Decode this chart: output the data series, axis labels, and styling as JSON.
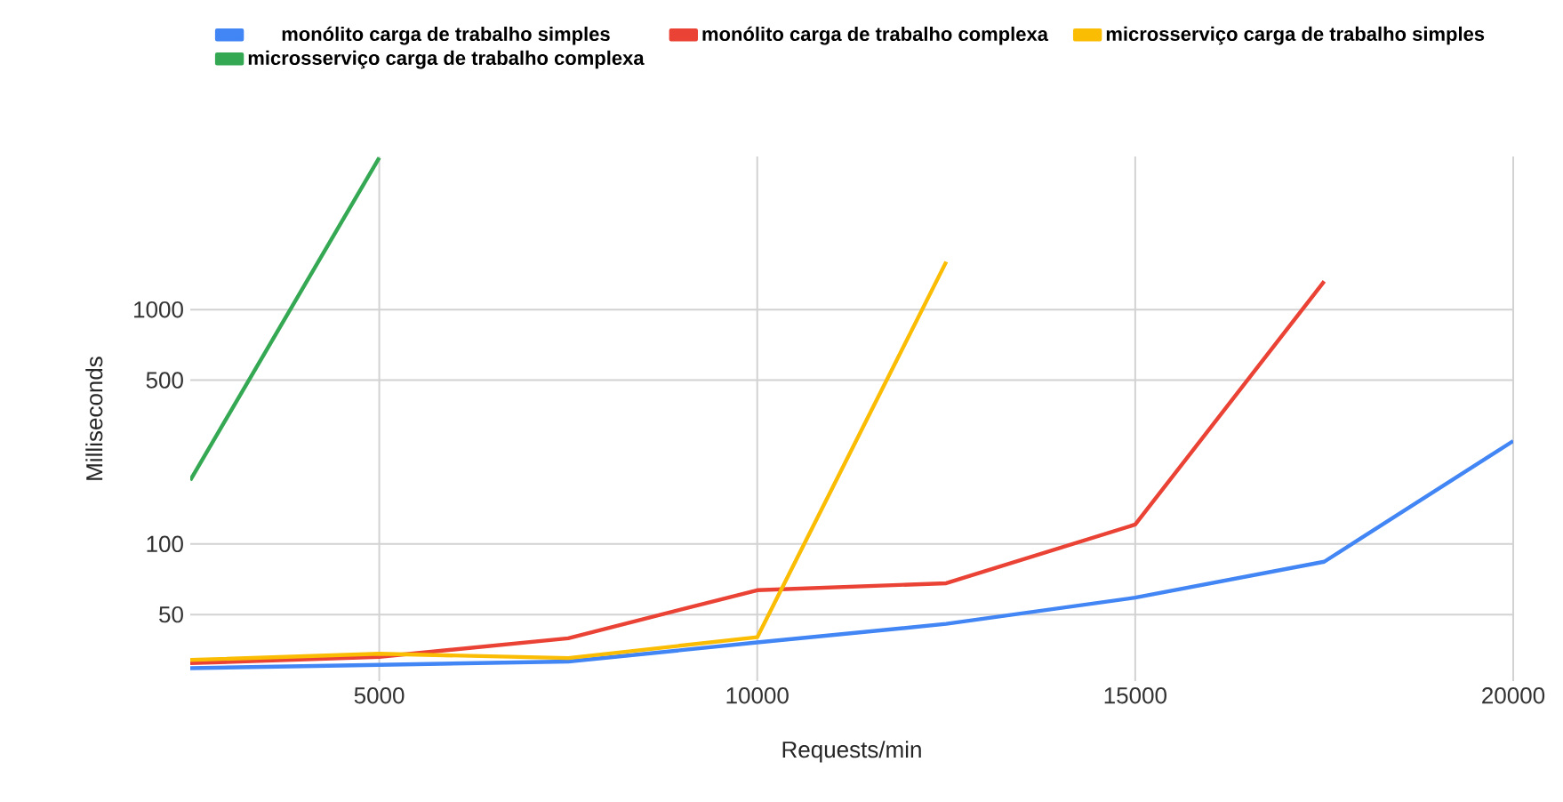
{
  "chart_data": {
    "type": "line",
    "xlabel": "Requests/min",
    "ylabel": "Milliseconds",
    "log": "y",
    "grid": true,
    "legend": "top",
    "xlim": [
      2500,
      20000
    ],
    "xticks": [
      5000,
      10000,
      15000,
      20000
    ],
    "ylim": [
      26,
      4500
    ],
    "yticks": [
      50,
      100,
      500,
      1000
    ],
    "series": [
      {
        "name": "monólito carga de trabalho simples",
        "color": "#4285f4",
        "x": [
          2500,
          5000,
          7500,
          10000,
          12500,
          15000,
          17500,
          20000
        ],
        "values": [
          29.5,
          30.5,
          31.5,
          38,
          45.6,
          59,
          84,
          275
        ]
      },
      {
        "name": "monólito carga de trabalho complexa",
        "color": "#ea4335",
        "x": [
          2500,
          5000,
          7500,
          10000,
          12500,
          15000,
          17500
        ],
        "values": [
          31,
          33,
          39.6,
          63.5,
          68,
          121,
          1320
        ]
      },
      {
        "name": "microsserviço carga de trabalho simples",
        "color": "#fbbc04",
        "x": [
          2500,
          5000,
          7500,
          10000,
          12500
        ],
        "values": [
          32,
          34,
          32.6,
          40,
          1600
        ]
      },
      {
        "name": "microsserviço carga de trabalho complexa",
        "color": "#34a853",
        "x": [
          2500,
          5000
        ],
        "values": [
          187,
          4450
        ]
      }
    ]
  }
}
